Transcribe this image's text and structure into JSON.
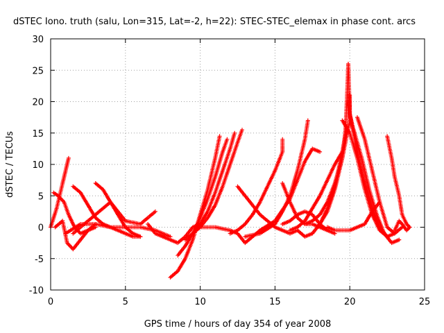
{
  "chart_data": {
    "type": "scatter",
    "title": "dSTEC Iono. truth (salu, Lon=315, Lat=-2, h=22): STEC-STEC_elemax in phase cont. arcs",
    "xlabel": "GPS time / hours of day 354 of year 2008",
    "ylabel": "dSTEC  / TECUs",
    "xlim": [
      0,
      25
    ],
    "ylim": [
      -10,
      30
    ],
    "xticks": [
      0,
      5,
      10,
      15,
      20,
      25
    ],
    "yticks": [
      -10,
      -5,
      0,
      5,
      10,
      15,
      20,
      25,
      30
    ],
    "grid": true,
    "marker": "+",
    "color": "#ff0000",
    "series": [
      {
        "x": [
          0.0,
          0.2,
          0.4,
          0.6,
          0.8,
          1.0,
          1.2
        ],
        "y": [
          0.0,
          1.5,
          3.0,
          5.0,
          7.0,
          9.0,
          11.0
        ]
      },
      {
        "x": [
          0.2,
          0.5,
          0.9,
          1.2,
          1.6,
          2.0,
          2.5,
          3.0
        ],
        "y": [
          5.5,
          5.0,
          4.0,
          2.0,
          0.0,
          -1.0,
          -0.5,
          0.0
        ]
      },
      {
        "x": [
          0.3,
          0.8,
          1.1,
          1.5,
          2.0,
          2.5,
          3.0
        ],
        "y": [
          0.0,
          1.0,
          -2.5,
          -3.5,
          -2.0,
          -0.5,
          0.5
        ]
      },
      {
        "x": [
          1.5,
          2.0,
          2.5,
          3.0,
          3.5,
          4.0,
          4.5,
          5.0,
          5.5,
          6.0
        ],
        "y": [
          6.5,
          5.5,
          3.5,
          1.5,
          0.5,
          0.0,
          -0.5,
          -1.0,
          -1.5,
          -1.5
        ]
      },
      {
        "x": [
          3.0,
          3.5,
          4.0,
          4.5,
          5.0,
          5.5,
          6.0
        ],
        "y": [
          7.0,
          6.0,
          4.0,
          2.0,
          0.0,
          -1.0,
          -1.5
        ]
      },
      {
        "x": [
          1.0,
          2.0,
          3.0,
          4.0,
          5.0,
          6.0,
          7.0,
          8.0
        ],
        "y": [
          -1.0,
          0.5,
          0.5,
          0.0,
          0.0,
          0.0,
          -0.5,
          -1.5
        ]
      },
      {
        "x": [
          1.5,
          2.5,
          3.0,
          3.5,
          4.0,
          5.0,
          6.0,
          7.0
        ],
        "y": [
          -1.0,
          1.0,
          2.0,
          3.0,
          4.0,
          1.0,
          0.5,
          2.5
        ]
      },
      {
        "x": [
          6.5,
          7.0,
          7.5,
          8.0,
          8.5,
          9.0,
          9.5,
          10.0
        ],
        "y": [
          0.5,
          -1.0,
          -1.5,
          -2.0,
          -2.5,
          -1.5,
          0.0,
          0.5
        ]
      },
      {
        "x": [
          8.0,
          8.5,
          9.0,
          9.5,
          10.0,
          10.5,
          11.0,
          11.3
        ],
        "y": [
          -8.0,
          -7.0,
          -5.0,
          -2.0,
          2.0,
          6.0,
          11.0,
          14.5
        ]
      },
      {
        "x": [
          8.5,
          9.0,
          9.5,
          10.0,
          10.5,
          11.0,
          11.5,
          11.8
        ],
        "y": [
          -4.5,
          -3.0,
          -1.0,
          1.5,
          4.5,
          8.0,
          12.0,
          14.0
        ]
      },
      {
        "x": [
          9.0,
          9.5,
          10.0,
          10.5,
          11.0,
          11.5,
          12.0,
          12.3
        ],
        "y": [
          -2.0,
          -1.0,
          0.5,
          2.5,
          5.5,
          9.0,
          12.5,
          15.0
        ]
      },
      {
        "x": [
          9.5,
          10.0,
          10.5,
          11.0,
          11.5,
          12.0,
          12.5,
          12.8
        ],
        "y": [
          -1.0,
          0.0,
          1.5,
          3.5,
          6.5,
          10.0,
          13.5,
          15.5
        ]
      },
      {
        "x": [
          10.0,
          11.0,
          12.0,
          12.5,
          13.0,
          13.5,
          14.0,
          15.0
        ],
        "y": [
          0.0,
          0.0,
          -0.5,
          -1.0,
          -2.5,
          -1.5,
          -0.5,
          0.5
        ]
      },
      {
        "x": [
          12.5,
          13.0,
          13.5,
          14.0,
          14.5,
          15.0,
          15.5,
          16.0,
          16.5
        ],
        "y": [
          6.5,
          5.0,
          3.5,
          2.0,
          1.0,
          0.0,
          -0.5,
          -1.0,
          -0.5
        ]
      },
      {
        "x": [
          12.0,
          12.5,
          13.0,
          13.5,
          14.0,
          14.5,
          15.0,
          15.5,
          15.5
        ],
        "y": [
          -1.0,
          -0.5,
          0.5,
          2.0,
          4.0,
          6.5,
          9.0,
          12.0,
          14.0
        ]
      },
      {
        "x": [
          13.0,
          14.0,
          15.0,
          15.5,
          16.0,
          16.5,
          17.0,
          17.2
        ],
        "y": [
          -1.5,
          -1.0,
          0.5,
          2.5,
          5.0,
          9.0,
          14.0,
          17.0
        ]
      },
      {
        "x": [
          14.0,
          15.0,
          16.0,
          16.5,
          17.0,
          17.5,
          18.0
        ],
        "y": [
          -0.5,
          1.0,
          4.5,
          7.5,
          10.5,
          12.5,
          12.0
        ]
      },
      {
        "x": [
          15.5,
          16.0,
          16.5,
          17.0,
          17.5,
          18.0,
          18.5
        ],
        "y": [
          7.0,
          4.0,
          1.5,
          0.5,
          0.5,
          0.0,
          -0.5
        ]
      },
      {
        "x": [
          16.0,
          16.5,
          17.0,
          17.5,
          18.0,
          18.5,
          19.0,
          19.5
        ],
        "y": [
          -0.5,
          0.0,
          1.0,
          3.0,
          5.0,
          7.5,
          10.0,
          12.0
        ]
      },
      {
        "x": [
          15.5,
          16.0,
          16.5,
          17.0,
          17.5,
          18.0,
          18.5,
          19.0
        ],
        "y": [
          0.5,
          1.0,
          2.0,
          2.5,
          2.0,
          0.5,
          -0.5,
          -1.0
        ]
      },
      {
        "x": [
          16.5,
          17.0,
          17.5,
          18.0,
          18.5,
          19.0,
          19.5,
          19.8
        ],
        "y": [
          -0.5,
          -1.5,
          -1.0,
          0.5,
          3.0,
          6.5,
          12.0,
          16.0
        ]
      },
      {
        "x": [
          17.0,
          17.5,
          18.0,
          18.5,
          19.0,
          19.5,
          20.0,
          20.0
        ],
        "y": [
          0.5,
          1.0,
          2.0,
          4.0,
          7.0,
          11.0,
          17.0,
          21.0
        ]
      },
      {
        "x": [
          18.0,
          18.5,
          19.0,
          19.5,
          19.7,
          19.8,
          19.9
        ],
        "y": [
          0.5,
          2.5,
          6.0,
          11.0,
          15.0,
          20.0,
          26.0
        ]
      },
      {
        "x": [
          19.9,
          20.0,
          20.5,
          21.0,
          21.5,
          22.0,
          22.5
        ],
        "y": [
          26.0,
          18.0,
          12.0,
          7.0,
          3.0,
          0.0,
          -1.5
        ]
      },
      {
        "x": [
          19.8,
          20.2,
          20.8,
          21.3,
          21.8,
          22.3,
          22.8,
          23.3
        ],
        "y": [
          20.0,
          16.0,
          11.0,
          6.0,
          2.0,
          -1.0,
          -2.5,
          -2.0
        ]
      },
      {
        "x": [
          19.5,
          20.0,
          20.5,
          21.0,
          21.5,
          22.0,
          22.5,
          23.0,
          23.5
        ],
        "y": [
          17.0,
          15.0,
          11.0,
          6.0,
          2.0,
          -0.5,
          -1.5,
          -1.0,
          0.0
        ]
      },
      {
        "x": [
          20.5,
          21.0,
          21.5,
          22.0,
          22.5,
          23.0
        ],
        "y": [
          17.5,
          14.0,
          9.0,
          4.0,
          0.0,
          -1.0
        ]
      },
      {
        "x": [
          22.5,
          22.8,
          23.0,
          23.3,
          23.5,
          23.8,
          24.0
        ],
        "y": [
          14.5,
          11.0,
          8.0,
          5.0,
          2.0,
          0.5,
          0.0
        ]
      },
      {
        "x": [
          23.0,
          23.3,
          23.5,
          23.8,
          24.0
        ],
        "y": [
          -0.5,
          1.0,
          0.5,
          -0.5,
          0.0
        ]
      },
      {
        "x": [
          18.5,
          19.0,
          19.5,
          20.0,
          20.5,
          21.0,
          21.5,
          22.0
        ],
        "y": [
          0.0,
          -0.5,
          -0.5,
          -0.5,
          0.0,
          0.5,
          2.5,
          4.0
        ]
      }
    ]
  }
}
